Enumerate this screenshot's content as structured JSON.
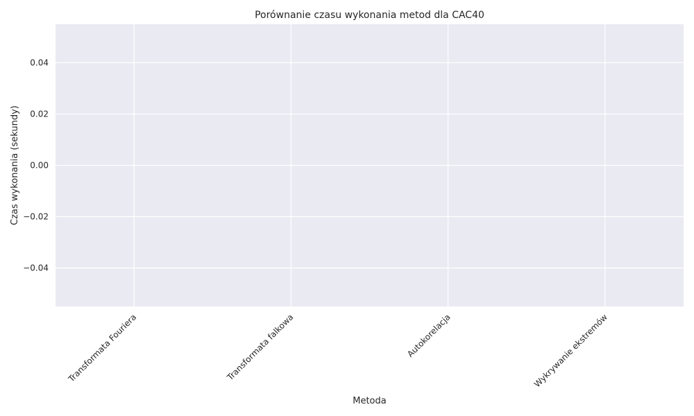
{
  "chart_data": {
    "type": "bar",
    "title": "Porównanie czasu wykonania metod dla CAC40",
    "xlabel": "Metoda",
    "ylabel": "Czas wykonania (sekundy)",
    "categories": [
      "Transformata Fouriera",
      "Transformata falkowa",
      "Autokorelacja",
      "Wykrywanie ekstremów"
    ],
    "values": [
      0,
      0,
      0,
      0
    ],
    "ylim": [
      -0.055,
      0.055
    ],
    "yticks": [
      0.04,
      0.02,
      0.0,
      -0.02,
      -0.04
    ],
    "ytick_labels": [
      "0.04",
      "0.02",
      "0.00",
      "−0.02",
      "−0.04"
    ],
    "grid": true,
    "colors": {
      "plot_background": "#EAEAF2",
      "grid": "#FFFFFF"
    }
  }
}
